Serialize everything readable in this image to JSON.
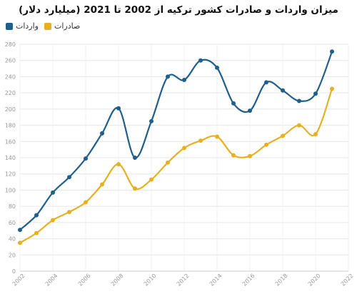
{
  "chart_data": {
    "type": "line",
    "title": "میزان واردات و صادرات کشور ترکیه از 2002 تا 2021 (میلیارد دلار)",
    "xlabel": "",
    "ylabel": "",
    "x": [
      2002,
      2003,
      2004,
      2005,
      2006,
      2007,
      2008,
      2009,
      2010,
      2011,
      2012,
      2013,
      2014,
      2015,
      2016,
      2017,
      2018,
      2019,
      2020,
      2021
    ],
    "xlim": [
      2002,
      2022
    ],
    "ylim": [
      0,
      280
    ],
    "xticks": [
      2002,
      2004,
      2006,
      2008,
      2010,
      2012,
      2014,
      2016,
      2018,
      2020,
      2022
    ],
    "yticks": [
      0,
      20,
      40,
      60,
      80,
      100,
      120,
      140,
      160,
      180,
      200,
      220,
      240,
      260,
      280
    ],
    "grid": true,
    "legend_position": "top-left",
    "series": [
      {
        "name": "واردات",
        "color": "#1f5f8b",
        "values": [
          51,
          69,
          97,
          116,
          139,
          170,
          201,
          140,
          185,
          240,
          236,
          260,
          251,
          207,
          198,
          233,
          223,
          210,
          219,
          271
        ]
      },
      {
        "name": "صادرات",
        "color": "#e6b020",
        "values": [
          35,
          47,
          63,
          73,
          85,
          107,
          132,
          102,
          113,
          134,
          152,
          161,
          166,
          143,
          142,
          156,
          167,
          180,
          169,
          225
        ]
      }
    ]
  }
}
